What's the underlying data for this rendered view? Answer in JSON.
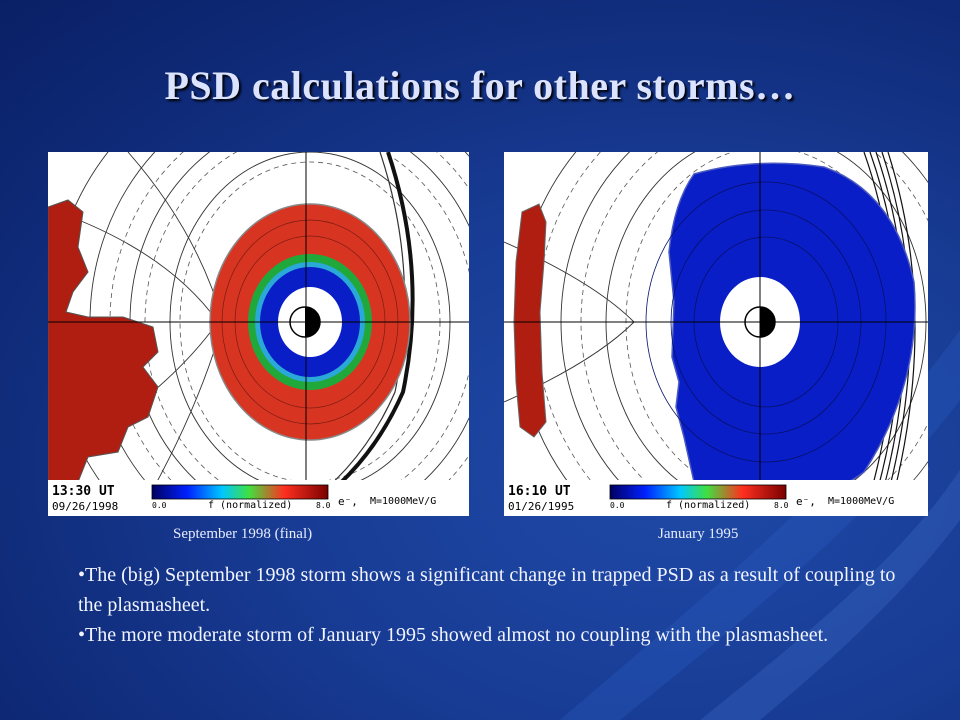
{
  "slide": {
    "title": "PSD calculations for other storms…",
    "panels": [
      {
        "caption": "September 1998 (final)",
        "time": "13:30 UT",
        "date": "09/26/1998",
        "colorbar_min": "0.0",
        "colorbar_label": "f (normalized)",
        "colorbar_max": "8.0",
        "species": "e⁻,",
        "energy": "M=1000MeV/G"
      },
      {
        "caption": "January 1995",
        "time": "16:10 UT",
        "date": "01/26/1995",
        "colorbar_min": "0.0",
        "colorbar_label": "f (normalized)",
        "colorbar_max": "8.0",
        "species": "e⁻,",
        "energy": "M=1000MeV/G"
      }
    ],
    "bullets": [
      "The (big) September 1998 storm shows a significant change in trapped PSD as a result of coupling to the plasmasheet.",
      "The more moderate storm of  January 1995 showed almost no coupling with the plasmasheet."
    ]
  },
  "colors": {
    "background": "#183c95",
    "title": "#dbe3ff",
    "psd_high": "#d42a1a",
    "psd_low": "#0a1ec8"
  }
}
